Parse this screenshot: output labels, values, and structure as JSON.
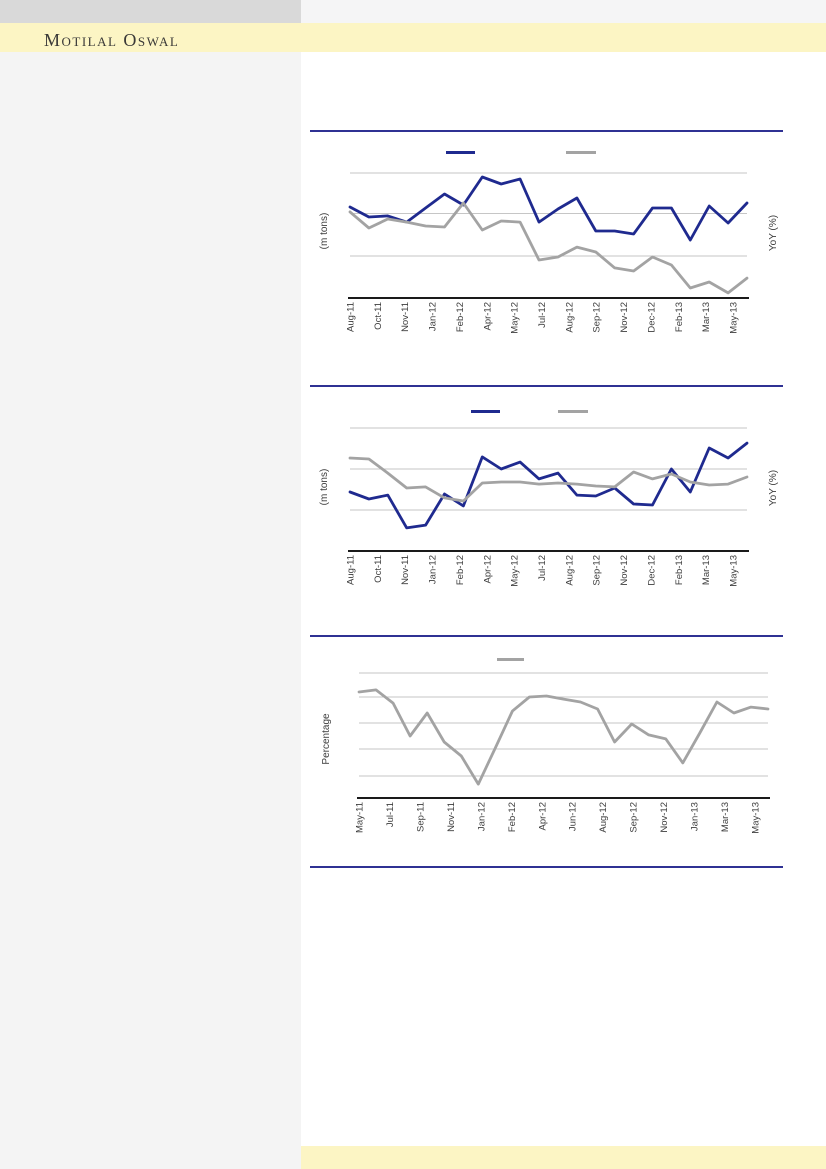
{
  "brand": {
    "text": "Motilal Oswal"
  },
  "colors": {
    "navy_line": "#1f2a8f",
    "gray_line": "#a3a3a3",
    "separator": "#2f3193",
    "gridline": "#c6c6c6",
    "axis_line": "#1a1a1a",
    "tick_text": "#3d3d3d",
    "brand_text": "#3a3937",
    "sidebar_bg": "#f4f4f4",
    "topband_left_bg": "#d9d9d9",
    "topband_right_bg": "#f5f5f6",
    "accent_band_bg": "#fcf5c4"
  },
  "chart_data": [
    {
      "id": "chart-1",
      "type": "line",
      "title": "",
      "ylabel_left": "(m tons)",
      "ylabel_right": "YoY (%)",
      "y_axis_ticks": "none visible (gridlines only)",
      "x_tick_labels": [
        "Aug-11",
        "Oct-11",
        "Nov-11",
        "Jan-12",
        "Feb-12",
        "Apr-12",
        "May-12",
        "Jul-12",
        "Aug-12",
        "Sep-12",
        "Nov-12",
        "Dec-12",
        "Feb-13",
        "Mar-13",
        "May-13"
      ],
      "legend": [
        {
          "swatch_color": "#1f2a8f",
          "label": ""
        },
        {
          "swatch_color": "#a3a3a3",
          "label": ""
        }
      ],
      "series": [
        {
          "name": "navy",
          "color": "#1f2a8f",
          "axis": "left (m tons)",
          "values_pct_of_plot_height": [
            68.4,
            60.9,
            61.7,
            57.1,
            67.7,
            78.2,
            69.9,
            91.0,
            85.7,
            89.5,
            57.1,
            66.9,
            75.2,
            50.4,
            50.4,
            48.1,
            67.7,
            67.7,
            43.6,
            69.2,
            56.4,
            71.4
          ]
        },
        {
          "name": "gray",
          "color": "#a3a3a3",
          "axis": "right (YoY %)",
          "values_pct_of_plot_height": [
            64.7,
            52.6,
            59.4,
            57.1,
            54.1,
            53.4,
            71.4,
            51.1,
            57.9,
            57.1,
            28.6,
            30.8,
            38.3,
            34.6,
            22.6,
            20.3,
            30.8,
            24.8,
            7.5,
            12.0,
            3.8,
            15.0
          ]
        }
      ]
    },
    {
      "id": "chart-2",
      "type": "line",
      "title": "",
      "ylabel_left": "(m tons)",
      "ylabel_right": "YoY (%)",
      "y_axis_ticks": "none visible (gridlines only)",
      "x_tick_labels": [
        "Aug-11",
        "Oct-11",
        "Nov-11",
        "Jan-12",
        "Feb-12",
        "Apr-12",
        "May-12",
        "Jul-12",
        "Aug-12",
        "Sep-12",
        "Nov-12",
        "Dec-12",
        "Feb-13",
        "Mar-13",
        "May-13"
      ],
      "legend": [
        {
          "swatch_color": "#1f2a8f",
          "label": ""
        },
        {
          "swatch_color": "#a3a3a3",
          "label": ""
        }
      ],
      "series": [
        {
          "name": "navy",
          "color": "#1f2a8f",
          "axis": "left (m tons)",
          "values_pct_of_plot_height": [
            45.0,
            39.7,
            42.7,
            17.6,
            19.8,
            43.5,
            34.4,
            71.8,
            62.6,
            67.9,
            55.0,
            59.5,
            42.7,
            42.0,
            48.1,
            35.9,
            35.1,
            62.6,
            45.0,
            78.6,
            71.0,
            82.4
          ]
        },
        {
          "name": "gray",
          "color": "#a3a3a3",
          "axis": "right (YoY %)",
          "values_pct_of_plot_height": [
            71.0,
            70.2,
            59.5,
            48.1,
            48.9,
            40.5,
            38.2,
            51.9,
            52.7,
            52.7,
            51.1,
            51.9,
            51.1,
            49.6,
            48.9,
            60.3,
            55.0,
            58.8,
            52.7,
            50.4,
            51.1,
            56.5
          ]
        }
      ]
    },
    {
      "id": "chart-3",
      "type": "line",
      "title": "",
      "ylabel_left": "Percentage",
      "ylabel_right": "",
      "y_axis_ticks": "none visible (gridlines only)",
      "x_tick_labels": [
        "May-11",
        "Jul-11",
        "Sep-11",
        "Nov-11",
        "Jan-12",
        "Feb-12",
        "Apr-12",
        "Jun-12",
        "Aug-12",
        "Sep-12",
        "Nov-12",
        "Jan-13",
        "Mar-13",
        "May-13"
      ],
      "legend": [
        {
          "swatch_color": "#a3a3a3",
          "label": ""
        }
      ],
      "series": [
        {
          "name": "gray",
          "color": "#a3a3a3",
          "axis": "left (Percentage)",
          "values_pct_of_plot_height": [
            76.8,
            78.3,
            68.8,
            44.9,
            61.6,
            40.6,
            30.4,
            10.1,
            36.2,
            63.0,
            73.2,
            73.9,
            71.7,
            69.6,
            64.5,
            40.6,
            53.6,
            45.7,
            42.8,
            25.4,
            47.1,
            69.6,
            61.6,
            65.9,
            64.5
          ]
        }
      ]
    }
  ]
}
